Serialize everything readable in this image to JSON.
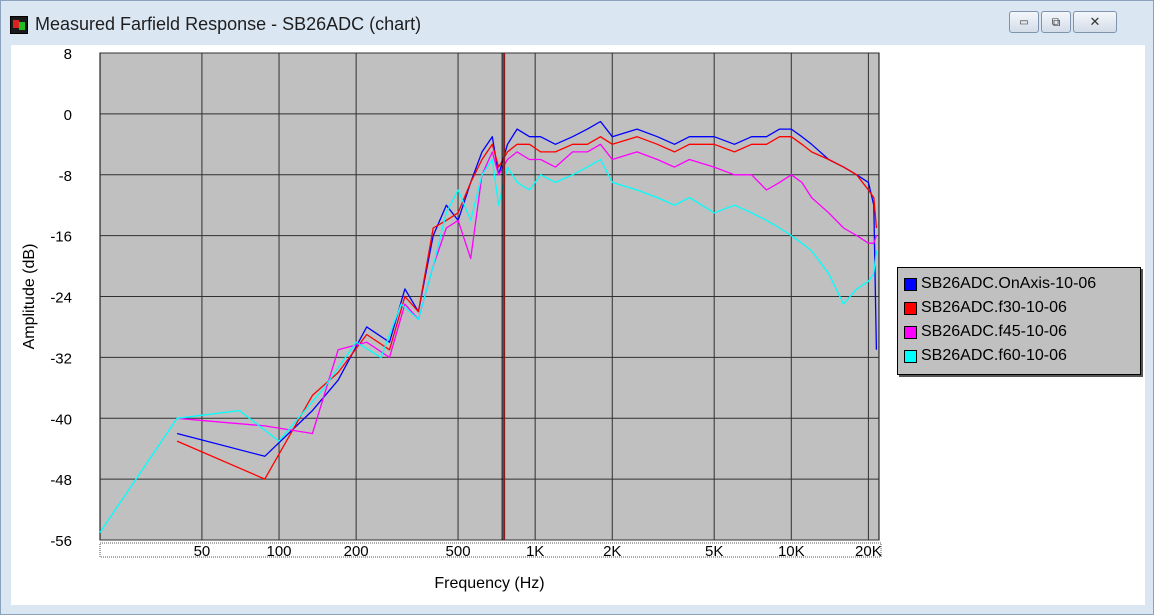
{
  "window": {
    "title": "Measured Farfield Response - SB26ADC (chart)",
    "controls": {
      "minimize": "▭",
      "maximize": "⧉",
      "close": "✕"
    }
  },
  "chart_data": {
    "type": "line",
    "title": "",
    "xlabel": "Frequency (Hz)",
    "ylabel": "Amplitude (dB)",
    "x_scale": "log",
    "xlim": [
      20,
      22000
    ],
    "ylim": [
      -56,
      8
    ],
    "x_ticks": [
      {
        "value": 50,
        "label": "50"
      },
      {
        "value": 100,
        "label": "100"
      },
      {
        "value": 200,
        "label": "200"
      },
      {
        "value": 500,
        "label": "500"
      },
      {
        "value": 1000,
        "label": "1K"
      },
      {
        "value": 2000,
        "label": "2K"
      },
      {
        "value": 5000,
        "label": "5K"
      },
      {
        "value": 10000,
        "label": "10K"
      },
      {
        "value": 20000,
        "label": "20K"
      }
    ],
    "y_ticks": [
      8,
      0,
      -8,
      -16,
      -24,
      -32,
      -40,
      -48,
      -56
    ],
    "grid": true,
    "background": "#c0c0c0",
    "marker_line": {
      "x": 750,
      "color": "#8b1a1a"
    },
    "legend_position": "right",
    "series": [
      {
        "name": "SB26ADC.OnAxis-10-06",
        "color": "#0000ff",
        "x": [
          40,
          88,
          135,
          170,
          220,
          270,
          310,
          350,
          400,
          450,
          500,
          560,
          620,
          680,
          720,
          780,
          850,
          950,
          1050,
          1200,
          1400,
          1600,
          1800,
          2000,
          2500,
          3000,
          3500,
          4000,
          5000,
          6000,
          7000,
          8000,
          9000,
          10000,
          11000,
          12000,
          14000,
          16000,
          18000,
          20000,
          21000,
          21500
        ],
        "y": [
          -42,
          -45,
          -39,
          -35,
          -28,
          -30,
          -23,
          -26,
          -16,
          -12,
          -14,
          -9,
          -5,
          -3,
          -8,
          -4,
          -2,
          -3,
          -3,
          -4,
          -3,
          -2,
          -1,
          -3,
          -2,
          -3,
          -4,
          -3,
          -3,
          -4,
          -3,
          -3,
          -2,
          -2,
          -3,
          -4,
          -6,
          -7,
          -8,
          -9,
          -12,
          -31
        ]
      },
      {
        "name": "SB26ADC.f30-10-06",
        "color": "#ff0000",
        "x": [
          40,
          88,
          135,
          170,
          220,
          270,
          310,
          350,
          400,
          450,
          500,
          560,
          620,
          680,
          720,
          780,
          850,
          950,
          1050,
          1200,
          1400,
          1600,
          1800,
          2000,
          2500,
          3000,
          3500,
          4000,
          5000,
          6000,
          7000,
          8000,
          9000,
          10000,
          11000,
          12000,
          14000,
          16000,
          18000,
          20000,
          21000,
          21500
        ],
        "y": [
          -43,
          -48,
          -37,
          -34,
          -29,
          -31,
          -24,
          -26,
          -15,
          -14,
          -13,
          -9,
          -6,
          -4,
          -7,
          -5,
          -4,
          -4,
          -5,
          -5,
          -4,
          -4,
          -3,
          -4,
          -3,
          -4,
          -5,
          -4,
          -4,
          -5,
          -4,
          -4,
          -3,
          -3,
          -4,
          -5,
          -6,
          -7,
          -8,
          -10,
          -11,
          -15
        ]
      },
      {
        "name": "SB26ADC.f45-10-06",
        "color": "#ff00ff",
        "x": [
          40,
          88,
          135,
          170,
          220,
          270,
          310,
          350,
          400,
          450,
          500,
          560,
          620,
          680,
          720,
          780,
          850,
          950,
          1050,
          1200,
          1400,
          1600,
          1800,
          2000,
          2500,
          3000,
          3500,
          4000,
          5000,
          6000,
          7000,
          8000,
          9000,
          10000,
          11000,
          12000,
          14000,
          16000,
          18000,
          20000,
          21000,
          21500
        ],
        "y": [
          -40,
          -41,
          -42,
          -31,
          -30,
          -32,
          -25,
          -27,
          -20,
          -15,
          -14,
          -19,
          -8,
          -5,
          -8,
          -6,
          -5,
          -6,
          -6,
          -7,
          -5,
          -5,
          -4,
          -6,
          -5,
          -6,
          -7,
          -6,
          -7,
          -8,
          -8,
          -10,
          -9,
          -8,
          -9,
          -11,
          -13,
          -15,
          -16,
          -17,
          -17,
          -16
        ]
      },
      {
        "name": "SB26ADC.f60-10-06",
        "color": "#00ffff",
        "x": [
          20,
          40,
          70,
          100,
          150,
          200,
          250,
          300,
          350,
          400,
          450,
          500,
          560,
          620,
          680,
          720,
          780,
          850,
          950,
          1050,
          1200,
          1400,
          1600,
          1800,
          2000,
          2500,
          3000,
          3500,
          4000,
          5000,
          6000,
          7000,
          8000,
          9000,
          10000,
          11000,
          12000,
          14000,
          16000,
          18000,
          20000,
          21000,
          21500
        ],
        "y": [
          -55,
          -40,
          -39,
          -43,
          -36,
          -30,
          -32,
          -25,
          -27,
          -20,
          -13,
          -10,
          -14,
          -8,
          -6,
          -12,
          -7,
          -9,
          -10,
          -8,
          -9,
          -8,
          -7,
          -6,
          -9,
          -10,
          -11,
          -12,
          -11,
          -13,
          -12,
          -13,
          -14,
          -15,
          -16,
          -17,
          -18,
          -21,
          -25,
          -23,
          -22,
          -21,
          -18
        ]
      }
    ]
  }
}
